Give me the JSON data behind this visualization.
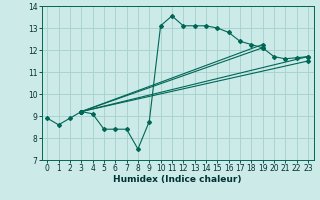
{
  "xlabel": "Humidex (Indice chaleur)",
  "background_color": "#cceae8",
  "grid_color": "#aad4d0",
  "line_color": "#006655",
  "xlim": [
    -0.5,
    23.5
  ],
  "ylim": [
    7,
    14
  ],
  "yticks": [
    7,
    8,
    9,
    10,
    11,
    12,
    13,
    14
  ],
  "xticks": [
    0,
    1,
    2,
    3,
    4,
    5,
    6,
    7,
    8,
    9,
    10,
    11,
    12,
    13,
    14,
    15,
    16,
    17,
    18,
    19,
    20,
    21,
    22,
    23
  ],
  "main_series": {
    "x": [
      0,
      1,
      2,
      3,
      4,
      5,
      6,
      7,
      8,
      9,
      10,
      11,
      12,
      13,
      14,
      15,
      16,
      17,
      18,
      19,
      20,
      21,
      22,
      23
    ],
    "y": [
      8.9,
      8.6,
      8.9,
      9.2,
      9.1,
      8.4,
      8.4,
      8.4,
      7.5,
      8.75,
      13.1,
      13.55,
      13.1,
      13.1,
      13.1,
      13.0,
      12.8,
      12.4,
      12.25,
      12.1,
      11.7,
      11.6,
      11.65,
      11.7
    ]
  },
  "straight_lines": [
    {
      "x": [
        3,
        19
      ],
      "y": [
        9.2,
        12.25
      ]
    },
    {
      "x": [
        3,
        19
      ],
      "y": [
        9.2,
        12.1
      ]
    },
    {
      "x": [
        3,
        23
      ],
      "y": [
        9.2,
        11.7
      ]
    },
    {
      "x": [
        3,
        23
      ],
      "y": [
        9.2,
        11.5
      ]
    }
  ]
}
